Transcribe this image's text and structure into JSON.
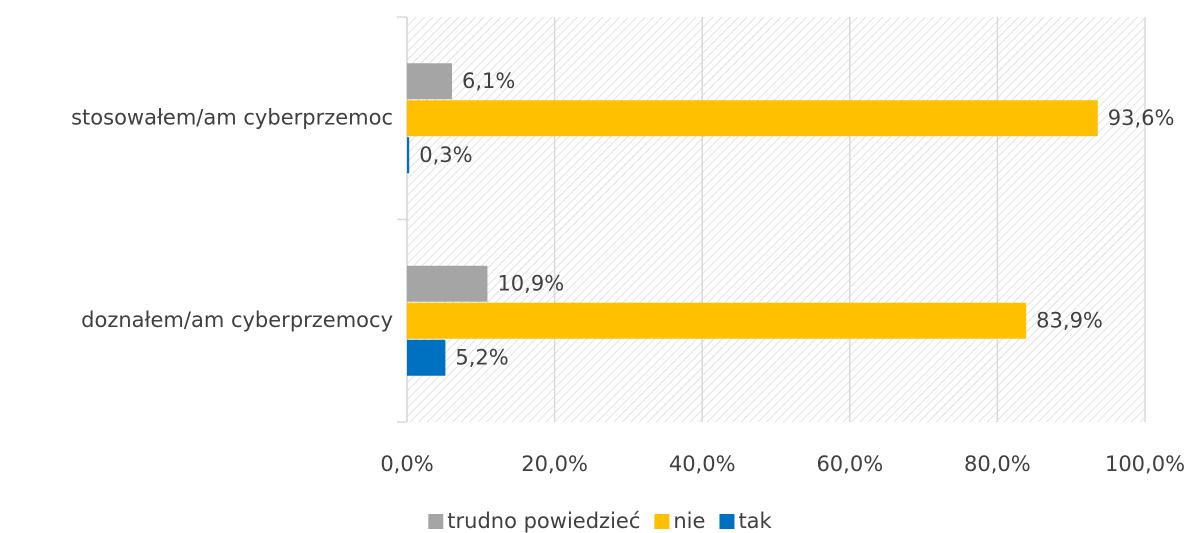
{
  "chart_data": {
    "type": "hbar",
    "categories": [
      "stosowałem/am cyberprzemoc",
      "doznałem/am cyberprzemocy"
    ],
    "series": [
      {
        "name": "trudno powiedzieć",
        "color": "#a5a5a5",
        "values": [
          6.1,
          10.9
        ],
        "value_labels": [
          "6,1%",
          "10,9%"
        ]
      },
      {
        "name": "nie",
        "color": "#ffc000",
        "values": [
          93.6,
          83.9
        ],
        "value_labels": [
          "93,6%",
          "83,9%"
        ]
      },
      {
        "name": "tak",
        "color": "#0070c0",
        "values": [
          0.3,
          5.2
        ],
        "value_labels": [
          "0,3%",
          "5,2%"
        ]
      }
    ],
    "xlim": [
      0,
      100
    ],
    "xticks": [
      {
        "value": 0,
        "label": "0,0%"
      },
      {
        "value": 20,
        "label": "20,0%"
      },
      {
        "value": 40,
        "label": "40,0%"
      },
      {
        "value": 60,
        "label": "60,0%"
      },
      {
        "value": 80,
        "label": "80,0%"
      },
      {
        "value": 100,
        "label": "100,0%"
      }
    ],
    "grid": true,
    "legend": "bottom"
  }
}
